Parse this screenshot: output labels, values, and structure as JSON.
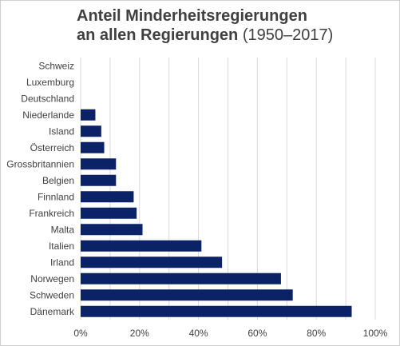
{
  "chart_data": {
    "type": "bar",
    "orientation": "horizontal",
    "title": "Anteil Minderheitsregierungen an allen Regierungen (1950–2017)",
    "title_lines": [
      "Anteil Minderheitsregierungen",
      "an allen Regierungen"
    ],
    "subtitle": "(1950–2017)",
    "categories": [
      "Schweiz",
      "Luxemburg",
      "Deutschland",
      "Niederlande",
      "Island",
      "Österreich",
      "Grossbritannien",
      "Belgien",
      "Finnland",
      "Frankreich",
      "Malta",
      "Italien",
      "Irland",
      "Norwegen",
      "Schweden",
      "Dänemark"
    ],
    "values": [
      0,
      0,
      0,
      5,
      7,
      8,
      12,
      12,
      18,
      19,
      21,
      41,
      48,
      68,
      72,
      92
    ],
    "xlim": [
      0,
      100
    ],
    "xticks": [
      0,
      20,
      40,
      60,
      80,
      100
    ],
    "xtick_labels": [
      "0%",
      "20%",
      "40%",
      "60%",
      "80%",
      "100%"
    ],
    "xlabel": "",
    "ylabel": "",
    "grid": true,
    "legend": "none",
    "bar_color": "#0b2266",
    "grid_color": "#d9d9d9"
  }
}
